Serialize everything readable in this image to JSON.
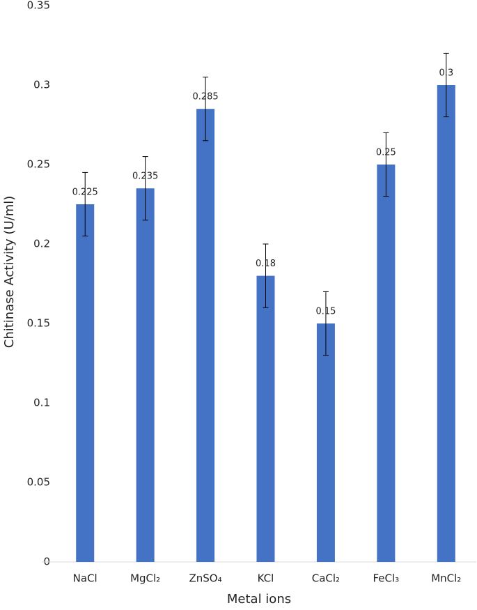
{
  "chart_data": {
    "type": "bar",
    "x_label": "Metal ions",
    "y_label": "Chitinase Activity (U/ml)",
    "categories": [
      "NaCl",
      "MgCl₂",
      "ZnSO₄",
      "KCl",
      "CaCl₂",
      "FeCl₃",
      "MnCl₂"
    ],
    "values": [
      0.225,
      0.235,
      0.285,
      0.18,
      0.15,
      0.25,
      0.3
    ],
    "errors": [
      0.02,
      0.02,
      0.02,
      0.02,
      0.02,
      0.02,
      0.02
    ],
    "color": "#4472c4",
    "ylim": [
      0,
      0.35
    ],
    "yticks": [
      0,
      0.05,
      0.1,
      0.15,
      0.2,
      0.25,
      0.3,
      0.35
    ],
    "grid": false
  }
}
